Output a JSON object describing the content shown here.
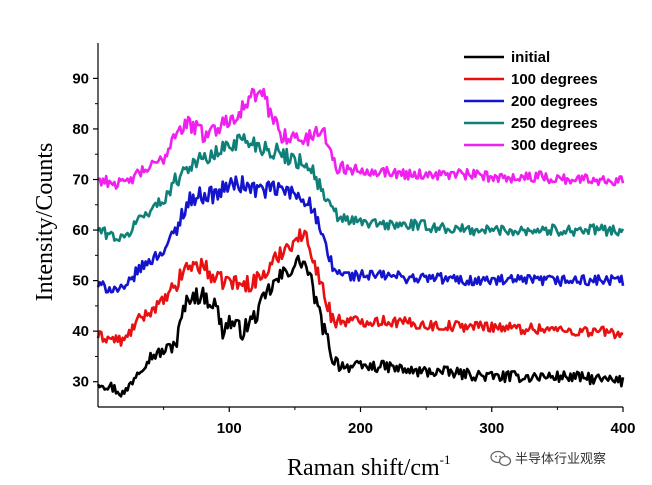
{
  "chart_data": {
    "type": "line",
    "title": "",
    "xlabel": "Raman shift/cm",
    "xlabel_superscript": "-1",
    "ylabel": "Intensity/Counts",
    "xlim": [
      0,
      400
    ],
    "ylim": [
      25,
      97
    ],
    "x_ticks": [
      100,
      200,
      300,
      400
    ],
    "y_ticks": [
      30,
      40,
      50,
      60,
      70,
      80,
      90
    ],
    "x_tick_labels": [
      "100",
      "200",
      "300",
      "400"
    ],
    "y_tick_labels": [
      "30",
      "40",
      "50",
      "60",
      "70",
      "80",
      "90"
    ],
    "grid": false,
    "legend_position": "top-right",
    "series": [
      {
        "name": "initial",
        "color": "#000000",
        "points": [
          [
            0,
            30
          ],
          [
            10,
            29
          ],
          [
            20,
            27.5
          ],
          [
            30,
            32
          ],
          [
            40,
            35
          ],
          [
            50,
            36
          ],
          [
            60,
            38
          ],
          [
            65,
            44
          ],
          [
            70,
            47
          ],
          [
            80,
            47
          ],
          [
            90,
            45
          ],
          [
            95,
            40
          ],
          [
            100,
            42
          ],
          [
            110,
            40
          ],
          [
            120,
            43
          ],
          [
            130,
            48
          ],
          [
            140,
            51
          ],
          [
            150,
            53
          ],
          [
            155,
            54
          ],
          [
            160,
            52
          ],
          [
            165,
            47
          ],
          [
            170,
            42
          ],
          [
            175,
            38
          ],
          [
            180,
            34
          ],
          [
            190,
            33
          ],
          [
            200,
            33
          ],
          [
            220,
            33
          ],
          [
            240,
            32
          ],
          [
            260,
            32
          ],
          [
            280,
            31.5
          ],
          [
            300,
            31
          ],
          [
            320,
            31
          ],
          [
            340,
            31
          ],
          [
            360,
            31
          ],
          [
            380,
            30.5
          ],
          [
            400,
            30
          ]
        ]
      },
      {
        "name": "100 degrees",
        "color": "#e81010",
        "points": [
          [
            0,
            39
          ],
          [
            10,
            38.5
          ],
          [
            20,
            38
          ],
          [
            30,
            42
          ],
          [
            40,
            44
          ],
          [
            50,
            46
          ],
          [
            60,
            49
          ],
          [
            65,
            52
          ],
          [
            70,
            53
          ],
          [
            80,
            53
          ],
          [
            90,
            50
          ],
          [
            100,
            50
          ],
          [
            110,
            49
          ],
          [
            120,
            50
          ],
          [
            130,
            52
          ],
          [
            140,
            56
          ],
          [
            150,
            58
          ],
          [
            155,
            59
          ],
          [
            160,
            58
          ],
          [
            165,
            54
          ],
          [
            170,
            49
          ],
          [
            175,
            45
          ],
          [
            180,
            42
          ],
          [
            190,
            42
          ],
          [
            200,
            42
          ],
          [
            220,
            42
          ],
          [
            240,
            41.5
          ],
          [
            260,
            41
          ],
          [
            280,
            41
          ],
          [
            300,
            41
          ],
          [
            320,
            40.5
          ],
          [
            340,
            40.5
          ],
          [
            360,
            40
          ],
          [
            380,
            40
          ],
          [
            400,
            39.5
          ]
        ]
      },
      {
        "name": "200 degrees",
        "color": "#1414cc",
        "points": [
          [
            0,
            49
          ],
          [
            10,
            48.5
          ],
          [
            20,
            48
          ],
          [
            30,
            52
          ],
          [
            40,
            54
          ],
          [
            50,
            56
          ],
          [
            60,
            60
          ],
          [
            65,
            64
          ],
          [
            70,
            66
          ],
          [
            80,
            67
          ],
          [
            90,
            67
          ],
          [
            100,
            69
          ],
          [
            110,
            69
          ],
          [
            120,
            68
          ],
          [
            130,
            68
          ],
          [
            140,
            68
          ],
          [
            150,
            67
          ],
          [
            160,
            66
          ],
          [
            165,
            63
          ],
          [
            170,
            59
          ],
          [
            175,
            55
          ],
          [
            180,
            52
          ],
          [
            190,
            51
          ],
          [
            200,
            51
          ],
          [
            220,
            51
          ],
          [
            240,
            50.5
          ],
          [
            260,
            50.5
          ],
          [
            280,
            50
          ],
          [
            300,
            50
          ],
          [
            320,
            50
          ],
          [
            340,
            50
          ],
          [
            360,
            50
          ],
          [
            380,
            50
          ],
          [
            400,
            50
          ]
        ]
      },
      {
        "name": "250 degrees",
        "color": "#0f8078",
        "points": [
          [
            0,
            60
          ],
          [
            10,
            59
          ],
          [
            20,
            58
          ],
          [
            30,
            62
          ],
          [
            40,
            64
          ],
          [
            50,
            66
          ],
          [
            60,
            70
          ],
          [
            65,
            72
          ],
          [
            70,
            73
          ],
          [
            80,
            74
          ],
          [
            90,
            75
          ],
          [
            100,
            77
          ],
          [
            110,
            78
          ],
          [
            120,
            77
          ],
          [
            130,
            76
          ],
          [
            140,
            75
          ],
          [
            150,
            74
          ],
          [
            160,
            73
          ],
          [
            165,
            71
          ],
          [
            170,
            68
          ],
          [
            175,
            65
          ],
          [
            180,
            63
          ],
          [
            190,
            62
          ],
          [
            200,
            61.5
          ],
          [
            220,
            61
          ],
          [
            240,
            61
          ],
          [
            260,
            60.5
          ],
          [
            280,
            60
          ],
          [
            300,
            60
          ],
          [
            320,
            60
          ],
          [
            340,
            60
          ],
          [
            360,
            60
          ],
          [
            380,
            60
          ],
          [
            400,
            60
          ]
        ]
      },
      {
        "name": "300 degrees",
        "color": "#f020f0",
        "points": [
          [
            0,
            70
          ],
          [
            10,
            69.5
          ],
          [
            20,
            69
          ],
          [
            30,
            71
          ],
          [
            40,
            72.5
          ],
          [
            50,
            74
          ],
          [
            55,
            77
          ],
          [
            60,
            80
          ],
          [
            70,
            81
          ],
          [
            80,
            79
          ],
          [
            90,
            80
          ],
          [
            100,
            82
          ],
          [
            110,
            84
          ],
          [
            120,
            87
          ],
          [
            125,
            87
          ],
          [
            130,
            84
          ],
          [
            140,
            79
          ],
          [
            150,
            78
          ],
          [
            160,
            78
          ],
          [
            170,
            80
          ],
          [
            175,
            78
          ],
          [
            180,
            73
          ],
          [
            190,
            72
          ],
          [
            200,
            72
          ],
          [
            220,
            71.5
          ],
          [
            240,
            71
          ],
          [
            260,
            71
          ],
          [
            280,
            71
          ],
          [
            300,
            70.5
          ],
          [
            320,
            70.5
          ],
          [
            340,
            70.5
          ],
          [
            360,
            70
          ],
          [
            380,
            70
          ],
          [
            400,
            70
          ]
        ]
      }
    ]
  },
  "watermark": {
    "text": "半导体行业观察",
    "icon": "wechat-icon"
  }
}
